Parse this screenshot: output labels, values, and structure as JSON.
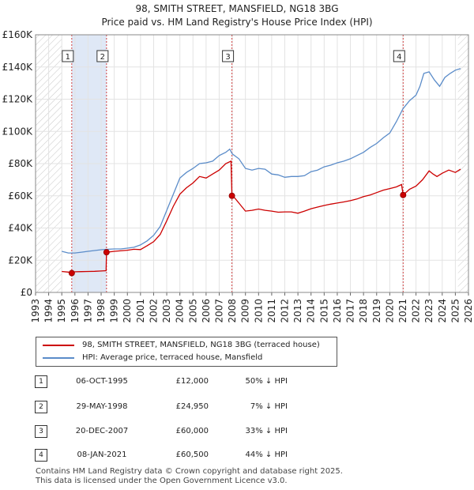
{
  "chart_data": {
    "type": "line",
    "title": "98, SMITH STREET, MANSFIELD, NG18 3BG",
    "subtitle": "Price paid vs. HM Land Registry's House Price Index (HPI)",
    "xlim": [
      1993,
      2026
    ],
    "ylim": [
      0,
      160000
    ],
    "x_ticks": [
      "1993",
      "1994",
      "1995",
      "1996",
      "1997",
      "1998",
      "1999",
      "2000",
      "2001",
      "2002",
      "2003",
      "2004",
      "2005",
      "2006",
      "2007",
      "2008",
      "2009",
      "2010",
      "2011",
      "2012",
      "2013",
      "2014",
      "2015",
      "2016",
      "2017",
      "2018",
      "2019",
      "2020",
      "2021",
      "2022",
      "2023",
      "2024",
      "2025",
      "2026"
    ],
    "y_ticks": [
      {
        "v": 0,
        "label": "£0"
      },
      {
        "v": 20000,
        "label": "£20K"
      },
      {
        "v": 40000,
        "label": "£40K"
      },
      {
        "v": 60000,
        "label": "£60K"
      },
      {
        "v": 80000,
        "label": "£80K"
      },
      {
        "v": 100000,
        "label": "£100K"
      },
      {
        "v": 120000,
        "label": "£120K"
      },
      {
        "v": 140000,
        "label": "£140K"
      },
      {
        "v": 160000,
        "label": "£160K"
      }
    ],
    "hatch_ranges": [
      [
        1993,
        1995.0
      ],
      [
        2025.2,
        2026
      ]
    ],
    "shade_ranges": [
      [
        1995.76,
        1998.41
      ]
    ],
    "series": [
      {
        "name": "98, SMITH STREET, MANSFIELD, NG18 3BG (terraced house)",
        "color": "#cc0000",
        "x": [
          1995.0,
          1995.5,
          1995.76,
          1996.0,
          1996.5,
          1997.0,
          1997.5,
          1998.0,
          1998.38,
          1998.41,
          1999.0,
          2000.0,
          2000.5,
          2001.0,
          2001.5,
          2002.0,
          2002.5,
          2003.0,
          2003.5,
          2004.0,
          2004.5,
          2005.0,
          2005.5,
          2006.0,
          2006.5,
          2007.0,
          2007.5,
          2007.9,
          2007.97,
          2008.2,
          2008.6,
          2009.0,
          2009.5,
          2010.0,
          2010.5,
          2011.0,
          2011.5,
          2012.0,
          2012.5,
          2013.0,
          2013.5,
          2014.0,
          2014.5,
          2015.0,
          2015.5,
          2016.0,
          2016.5,
          2017.0,
          2017.5,
          2018.0,
          2018.5,
          2019.0,
          2019.5,
          2020.0,
          2020.5,
          2020.9,
          2021.02,
          2021.5,
          2022.0,
          2022.5,
          2023.0,
          2023.3,
          2023.6,
          2024.0,
          2024.5,
          2025.0,
          2025.4
        ],
        "y": [
          13000,
          12600,
          12000,
          12800,
          12900,
          13000,
          13100,
          13300,
          13500,
          24950,
          25500,
          26200,
          26800,
          26600,
          29000,
          31500,
          36000,
          44500,
          53500,
          61000,
          65000,
          68000,
          72000,
          71000,
          73500,
          76000,
          80000,
          81500,
          60000,
          58500,
          54500,
          50500,
          51000,
          51800,
          51000,
          50500,
          49800,
          50000,
          50000,
          49200,
          50500,
          52000,
          53000,
          54000,
          54800,
          55500,
          56200,
          57000,
          58000,
          59500,
          60500,
          62000,
          63500,
          64500,
          65500,
          67000,
          60500,
          64000,
          66000,
          70000,
          75500,
          73500,
          72000,
          74000,
          76000,
          74500,
          76500
        ]
      },
      {
        "name": "HPI: Average price, terraced house, Mansfield",
        "color": "#5b8cc9",
        "x": [
          1995.0,
          1995.5,
          1996.0,
          1996.5,
          1997.0,
          1997.5,
          1998.0,
          1998.5,
          1999.0,
          1999.5,
          2000.0,
          2000.5,
          2001.0,
          2001.5,
          2002.0,
          2002.5,
          2003.0,
          2003.5,
          2004.0,
          2004.5,
          2005.0,
          2005.5,
          2006.0,
          2006.5,
          2007.0,
          2007.5,
          2007.8,
          2008.0,
          2008.5,
          2009.0,
          2009.5,
          2010.0,
          2010.5,
          2011.0,
          2011.5,
          2012.0,
          2012.5,
          2013.0,
          2013.5,
          2014.0,
          2014.5,
          2015.0,
          2015.5,
          2016.0,
          2016.5,
          2017.0,
          2017.5,
          2018.0,
          2018.5,
          2019.0,
          2019.5,
          2020.0,
          2020.5,
          2021.0,
          2021.5,
          2022.0,
          2022.3,
          2022.6,
          2023.0,
          2023.4,
          2023.8,
          2024.2,
          2024.6,
          2025.0,
          2025.4
        ],
        "y": [
          25500,
          24500,
          24500,
          25000,
          25500,
          26000,
          26500,
          26800,
          27000,
          27000,
          27500,
          28000,
          29500,
          32000,
          35500,
          41000,
          51000,
          61000,
          71000,
          74500,
          77000,
          80000,
          80500,
          81500,
          85000,
          87000,
          89000,
          86000,
          83000,
          77000,
          76000,
          77000,
          76500,
          73500,
          73000,
          71500,
          72000,
          72000,
          72500,
          75000,
          76000,
          78000,
          79000,
          80500,
          81500,
          83000,
          85000,
          87000,
          90000,
          92500,
          96000,
          99000,
          106000,
          114000,
          119000,
          122500,
          128000,
          136000,
          137000,
          132000,
          128000,
          133500,
          136000,
          138000,
          139000
        ]
      }
    ],
    "sales": [
      {
        "n": "1",
        "x": 1995.76,
        "y": 12000
      },
      {
        "n": "2",
        "x": 1998.41,
        "y": 24950
      },
      {
        "n": "3",
        "x": 2007.97,
        "y": 60000
      },
      {
        "n": "4",
        "x": 2021.02,
        "y": 60500
      }
    ]
  },
  "legend": {
    "property_label": "98, SMITH STREET, MANSFIELD, NG18 3BG (terraced house)",
    "hpi_label": "HPI: Average price, terraced house, Mansfield"
  },
  "transactions": [
    {
      "num": "1",
      "date": "06-OCT-1995",
      "price": "£12,000",
      "pct": "50% ↓ HPI"
    },
    {
      "num": "2",
      "date": "29-MAY-1998",
      "price": "£24,950",
      "pct": "7% ↓ HPI"
    },
    {
      "num": "3",
      "date": "20-DEC-2007",
      "price": "£60,000",
      "pct": "33% ↓ HPI"
    },
    {
      "num": "4",
      "date": "08-JAN-2021",
      "price": "£60,500",
      "pct": "44% ↓ HPI"
    }
  ],
  "footer": {
    "line1": "Contains HM Land Registry data © Crown copyright and database right 2025.",
    "line2": "This data is licensed under the Open Government Licence v3.0."
  }
}
